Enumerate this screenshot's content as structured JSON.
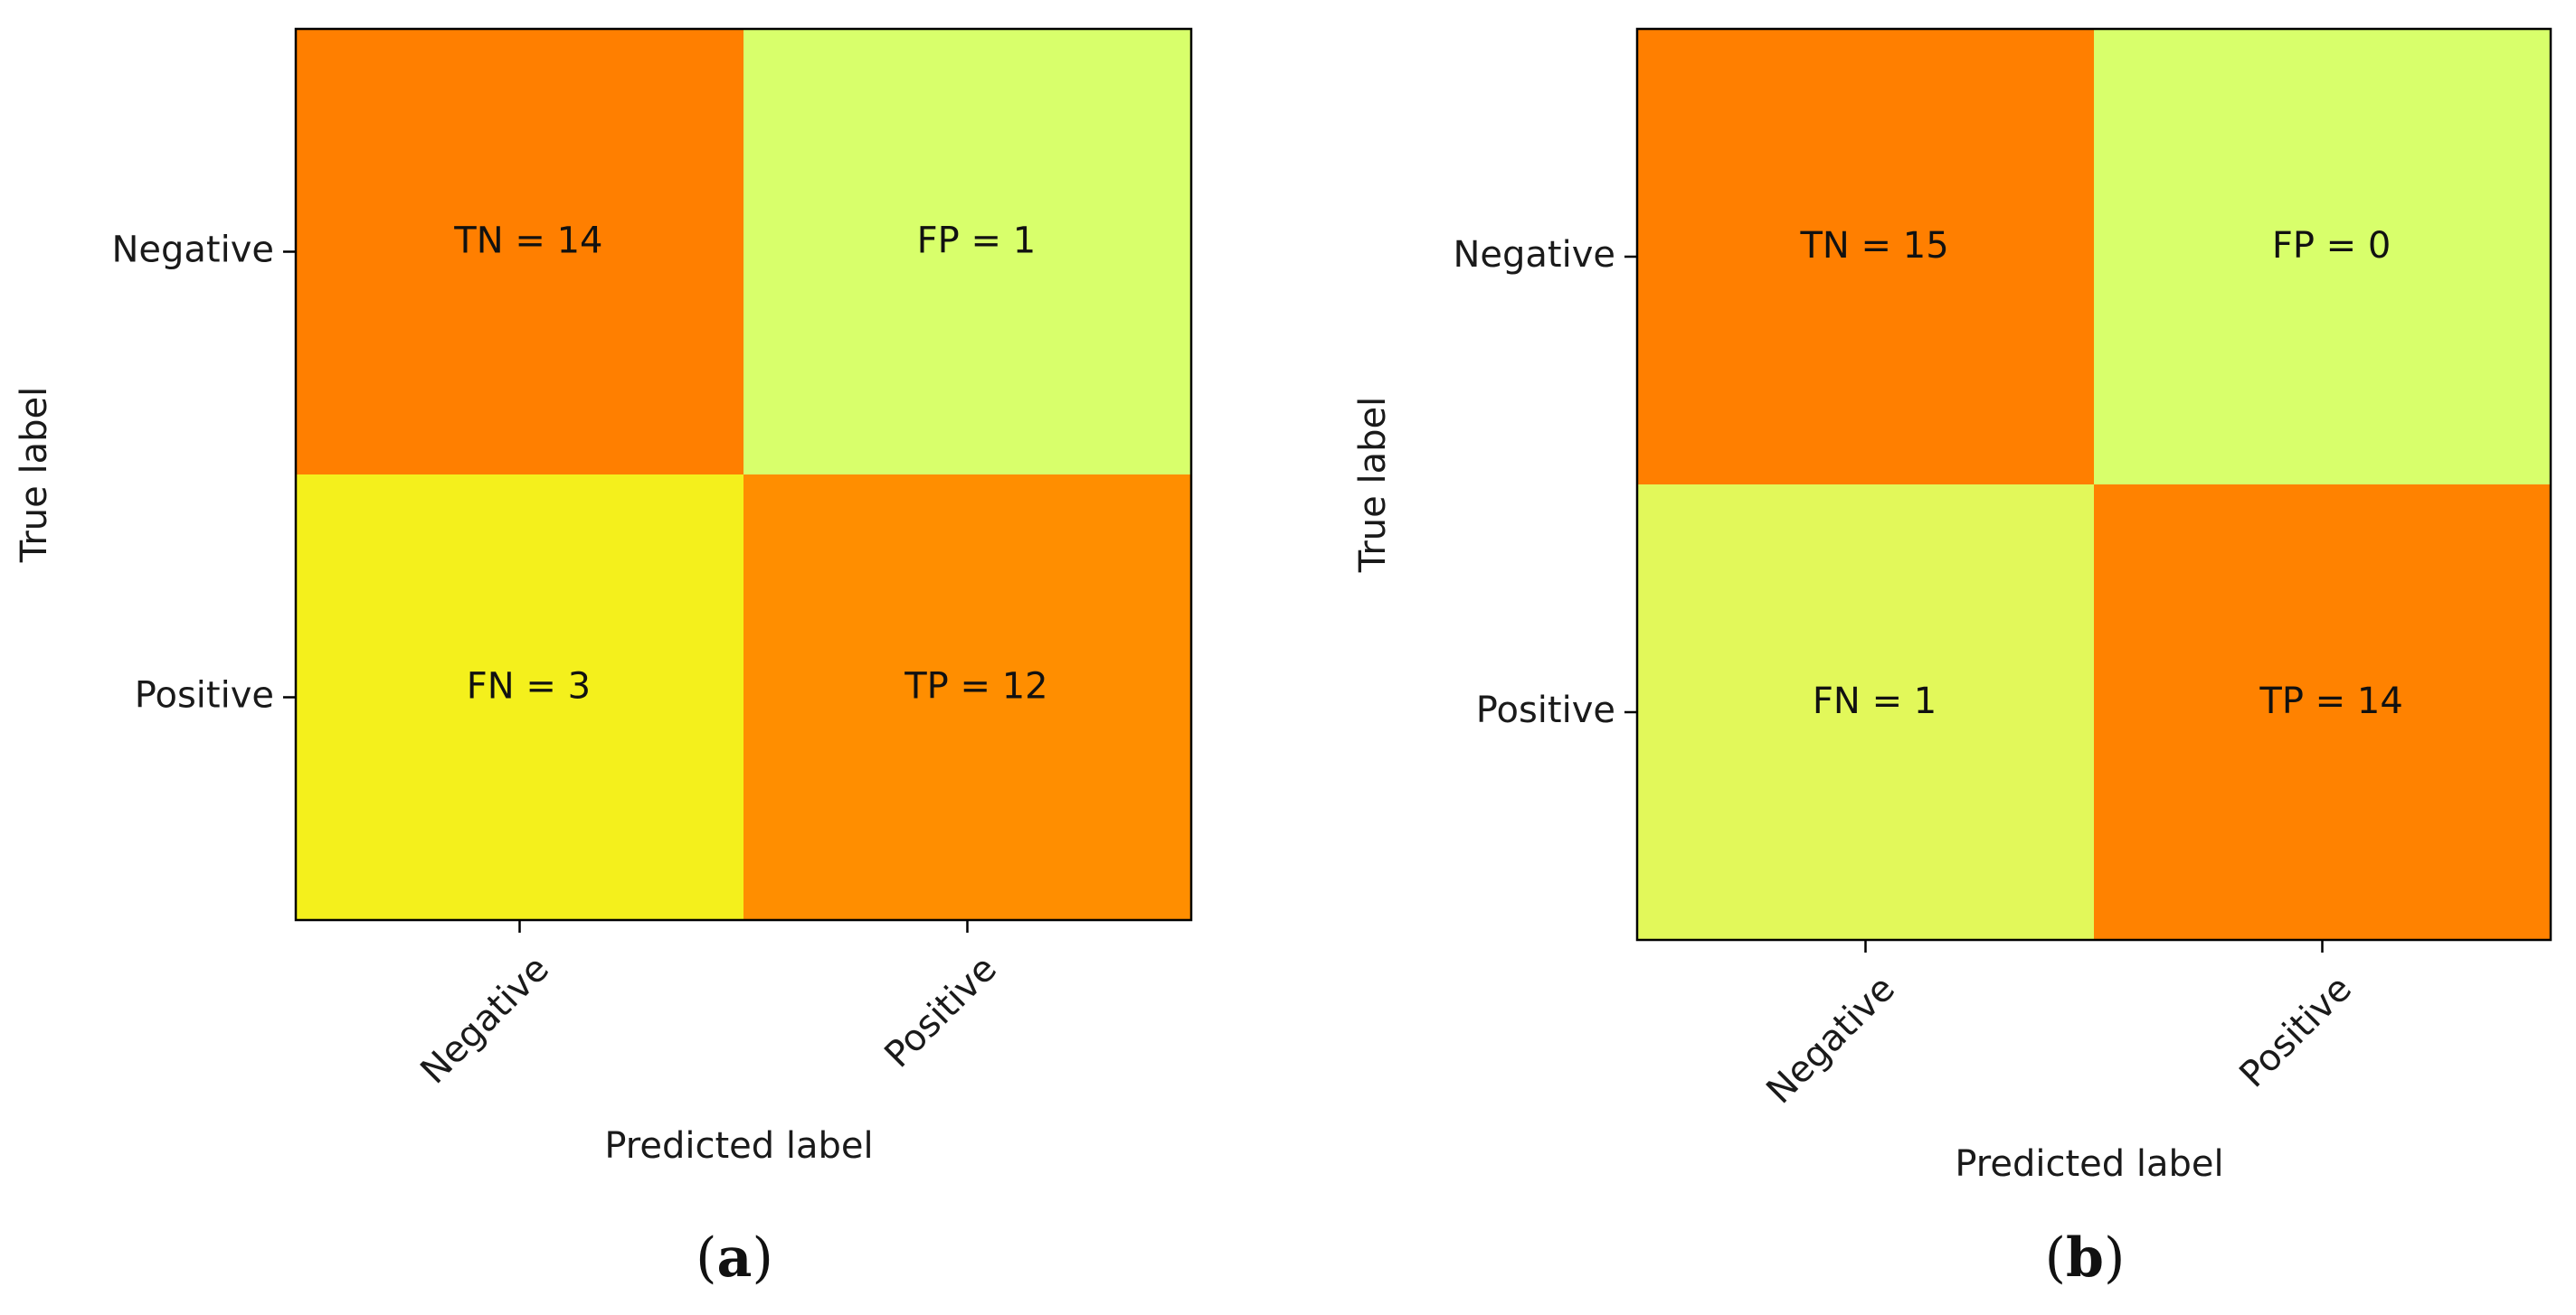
{
  "chart_data": [
    {
      "type": "heatmap",
      "panel_label": "a",
      "xlabel": "Predicted label",
      "ylabel": "True label",
      "x_categories": [
        "Negative",
        "Positive"
      ],
      "y_categories": [
        "Negative",
        "Positive"
      ],
      "cells": [
        {
          "row": 0,
          "col": 0,
          "text": "TN = 14",
          "value": 14,
          "color": "#ff7f00"
        },
        {
          "row": 0,
          "col": 1,
          "text": "FP = 1",
          "value": 1,
          "color": "#d8ff6b"
        },
        {
          "row": 1,
          "col": 0,
          "text": "FN = 3",
          "value": 3,
          "color": "#f4f01c"
        },
        {
          "row": 1,
          "col": 1,
          "text": "TP = 12",
          "value": 12,
          "color": "#ff8e00"
        }
      ]
    },
    {
      "type": "heatmap",
      "panel_label": "b",
      "xlabel": "Predicted label",
      "ylabel": "True label",
      "x_categories": [
        "Negative",
        "Positive"
      ],
      "y_categories": [
        "Negative",
        "Positive"
      ],
      "cells": [
        {
          "row": 0,
          "col": 0,
          "text": "TN = 15",
          "value": 15,
          "color": "#ff7f00"
        },
        {
          "row": 0,
          "col": 1,
          "text": "FP = 0",
          "value": 0,
          "color": "#d8ff6b"
        },
        {
          "row": 1,
          "col": 0,
          "text": "FN = 1",
          "value": 1,
          "color": "#e2f85a"
        },
        {
          "row": 1,
          "col": 1,
          "text": "TP = 14",
          "value": 14,
          "color": "#ff8200"
        }
      ]
    }
  ]
}
